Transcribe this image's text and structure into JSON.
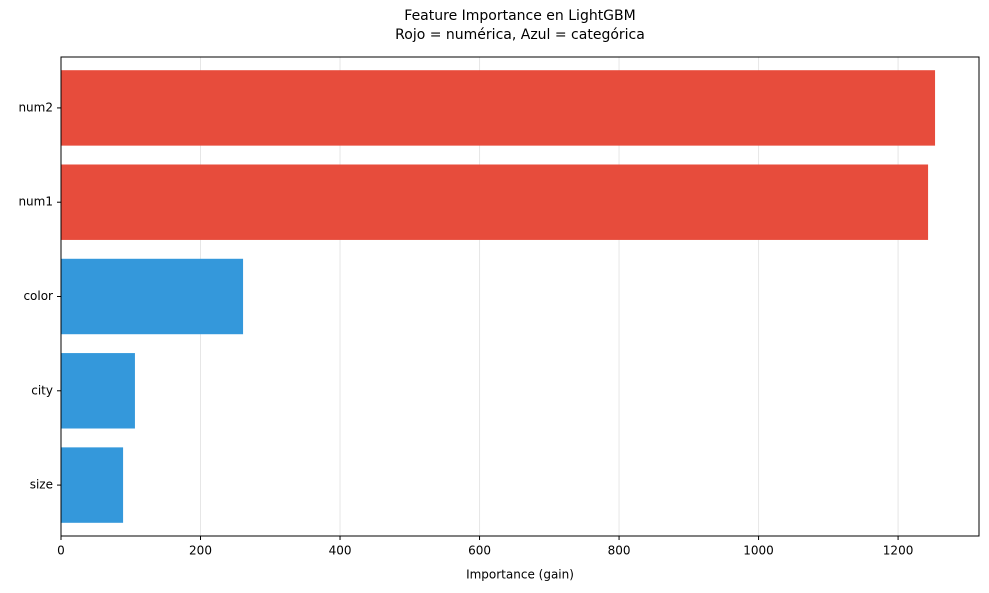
{
  "chart_data": {
    "type": "barh",
    "title": "Feature Importance en LightGBM",
    "subtitle": "Rojo = numérica, Azul = categórica",
    "categories": [
      "num2",
      "num1",
      "color",
      "city",
      "size"
    ],
    "values": [
      1253,
      1243,
      261,
      106,
      89
    ],
    "colors": [
      "#e74c3c",
      "#e74c3c",
      "#3498db",
      "#3498db",
      "#3498db"
    ],
    "xlabel": "Importance (gain)",
    "xlim": [
      0,
      1316
    ],
    "xticks": [
      0,
      200,
      400,
      600,
      800,
      1000,
      1200
    ],
    "grid": true
  }
}
